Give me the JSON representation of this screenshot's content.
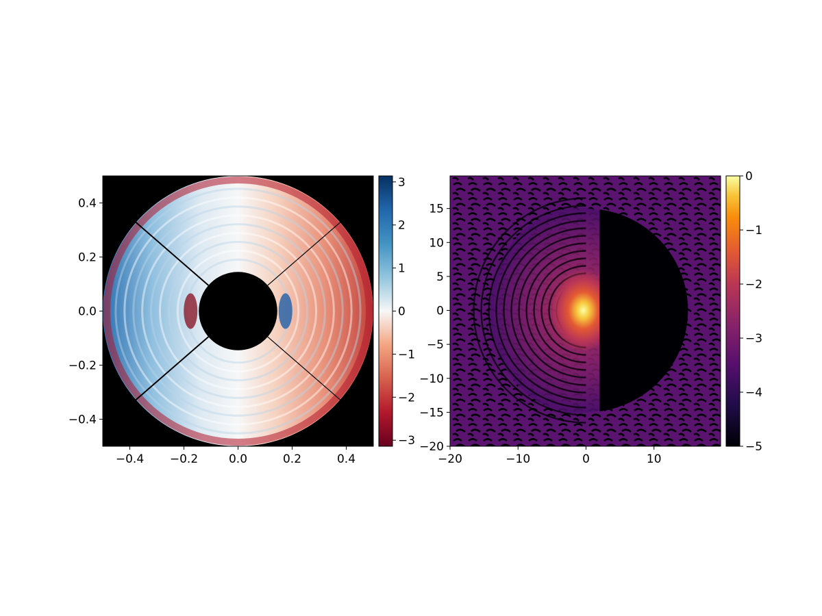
{
  "chart_data": [
    {
      "type": "heatmap",
      "title": "",
      "xlabel": "",
      "ylabel": "",
      "xlim": [
        -0.5,
        0.5
      ],
      "ylim": [
        -0.5,
        0.5
      ],
      "xticks": [
        -0.4,
        -0.2,
        0.0,
        0.2,
        0.4
      ],
      "xtick_labels": [
        "−0.4",
        "−0.2",
        "0.0",
        "0.2",
        "0.4"
      ],
      "yticks": [
        0.4,
        0.2,
        0.0,
        -0.2,
        -0.4
      ],
      "ytick_labels": [
        "0.4",
        "0.2",
        "0.0",
        "−0.2",
        "−0.4"
      ],
      "colormap": "RdBu",
      "background": "#000000",
      "annulus": {
        "outer_radius": 0.5,
        "inner_radius": 0.145
      },
      "spider_angles_deg": [
        41,
        139,
        221,
        319
      ],
      "colorbar": {
        "range": [
          -3.14,
          3.14
        ],
        "ticks": [
          3,
          2,
          1,
          0,
          -1,
          -2,
          -3
        ],
        "tick_labels": [
          "3",
          "2",
          "1",
          "0",
          "−1",
          "−2",
          "−3"
        ]
      },
      "grid": false
    },
    {
      "type": "heatmap",
      "title": "",
      "xlabel": "",
      "ylabel": "",
      "xlim": [
        -20,
        19.8
      ],
      "ylim": [
        -20,
        19.8
      ],
      "xticks": [
        -20,
        -10,
        0,
        10
      ],
      "xtick_labels": [
        "−20",
        "−10",
        "0",
        "10"
      ],
      "yticks": [
        15,
        10,
        5,
        0,
        -5,
        -10,
        -15,
        -20
      ],
      "ytick_labels": [
        "15",
        "10",
        "5",
        "0",
        "−5",
        "−10",
        "−15",
        "−20"
      ],
      "colormap": "inferno",
      "dark_hole": {
        "x_min": 2,
        "outer_radius": 15
      },
      "colorbar": {
        "range": [
          -5,
          0
        ],
        "ticks": [
          0,
          -1,
          -2,
          -3,
          -4,
          -5
        ],
        "tick_labels": [
          "0",
          "−1",
          "−2",
          "−3",
          "−4",
          "−5"
        ]
      },
      "grid": false
    }
  ]
}
